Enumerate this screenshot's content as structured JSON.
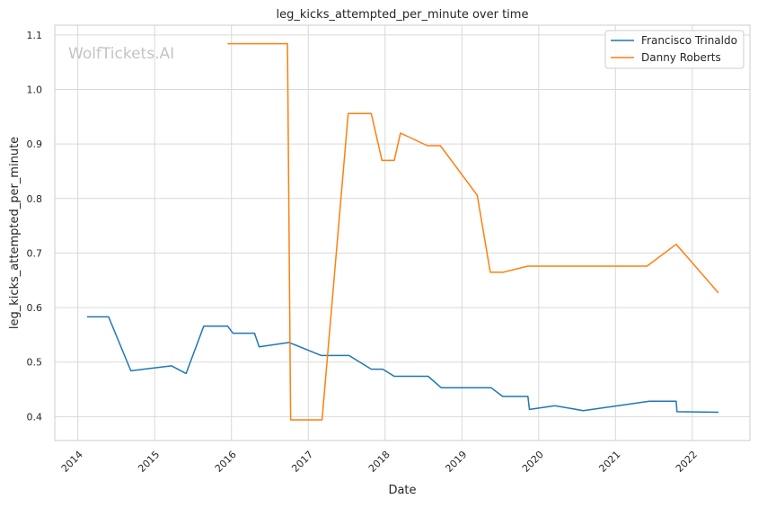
{
  "watermark": "WolfTickets.AI",
  "chart_data": {
    "type": "line",
    "title": "leg_kicks_attempted_per_minute over time",
    "xlabel": "Date",
    "ylabel": "leg_kicks_attempted_per_minute",
    "x_range": [
      2013.7,
      2022.75
    ],
    "ylim": [
      0.356,
      1.118
    ],
    "x_ticks": [
      {
        "value": 2014,
        "label": "2014"
      },
      {
        "value": 2015,
        "label": "2015"
      },
      {
        "value": 2016,
        "label": "2016"
      },
      {
        "value": 2017,
        "label": "2017"
      },
      {
        "value": 2018,
        "label": "2018"
      },
      {
        "value": 2019,
        "label": "2019"
      },
      {
        "value": 2020,
        "label": "2020"
      },
      {
        "value": 2021,
        "label": "2021"
      },
      {
        "value": 2022,
        "label": "2022"
      }
    ],
    "y_ticks": [
      {
        "value": 0.4,
        "label": "0.4"
      },
      {
        "value": 0.5,
        "label": "0.5"
      },
      {
        "value": 0.6,
        "label": "0.6"
      },
      {
        "value": 0.7,
        "label": "0.7"
      },
      {
        "value": 0.8,
        "label": "0.8"
      },
      {
        "value": 0.9,
        "label": "0.9"
      },
      {
        "value": 1.0,
        "label": "1.0"
      },
      {
        "value": 1.1,
        "label": "1.1"
      }
    ],
    "grid": true,
    "legend_position": "top-right",
    "series": [
      {
        "name": "Francisco Trinaldo",
        "color": "#1f77b4",
        "points": [
          [
            2014.12,
            0.583
          ],
          [
            2014.4,
            0.583
          ],
          [
            2014.69,
            0.484
          ],
          [
            2015.22,
            0.493
          ],
          [
            2015.41,
            0.479
          ],
          [
            2015.64,
            0.566
          ],
          [
            2015.95,
            0.566
          ],
          [
            2016.02,
            0.553
          ],
          [
            2016.3,
            0.553
          ],
          [
            2016.36,
            0.528
          ],
          [
            2016.75,
            0.536
          ],
          [
            2017.17,
            0.512
          ],
          [
            2017.53,
            0.512
          ],
          [
            2017.82,
            0.487
          ],
          [
            2017.97,
            0.487
          ],
          [
            2018.12,
            0.474
          ],
          [
            2018.56,
            0.474
          ],
          [
            2018.73,
            0.453
          ],
          [
            2019.38,
            0.453
          ],
          [
            2019.53,
            0.437
          ],
          [
            2019.86,
            0.437
          ],
          [
            2019.88,
            0.413
          ],
          [
            2020.21,
            0.42
          ],
          [
            2020.58,
            0.411
          ],
          [
            2021.44,
            0.428
          ],
          [
            2021.79,
            0.428
          ],
          [
            2021.8,
            0.409
          ],
          [
            2022.34,
            0.408
          ]
        ]
      },
      {
        "name": "Danny Roberts",
        "color": "#ff7f0e",
        "points": [
          [
            2015.95,
            1.084
          ],
          [
            2016.73,
            1.084
          ],
          [
            2016.77,
            0.394
          ],
          [
            2017.18,
            0.394
          ],
          [
            2017.52,
            0.956
          ],
          [
            2017.82,
            0.956
          ],
          [
            2017.96,
            0.87
          ],
          [
            2018.12,
            0.87
          ],
          [
            2018.2,
            0.92
          ],
          [
            2018.55,
            0.897
          ],
          [
            2018.72,
            0.897
          ],
          [
            2019.2,
            0.806
          ],
          [
            2019.37,
            0.665
          ],
          [
            2019.54,
            0.665
          ],
          [
            2019.86,
            0.676
          ],
          [
            2021.41,
            0.676
          ],
          [
            2021.79,
            0.716
          ],
          [
            2022.34,
            0.627
          ]
        ]
      }
    ]
  }
}
